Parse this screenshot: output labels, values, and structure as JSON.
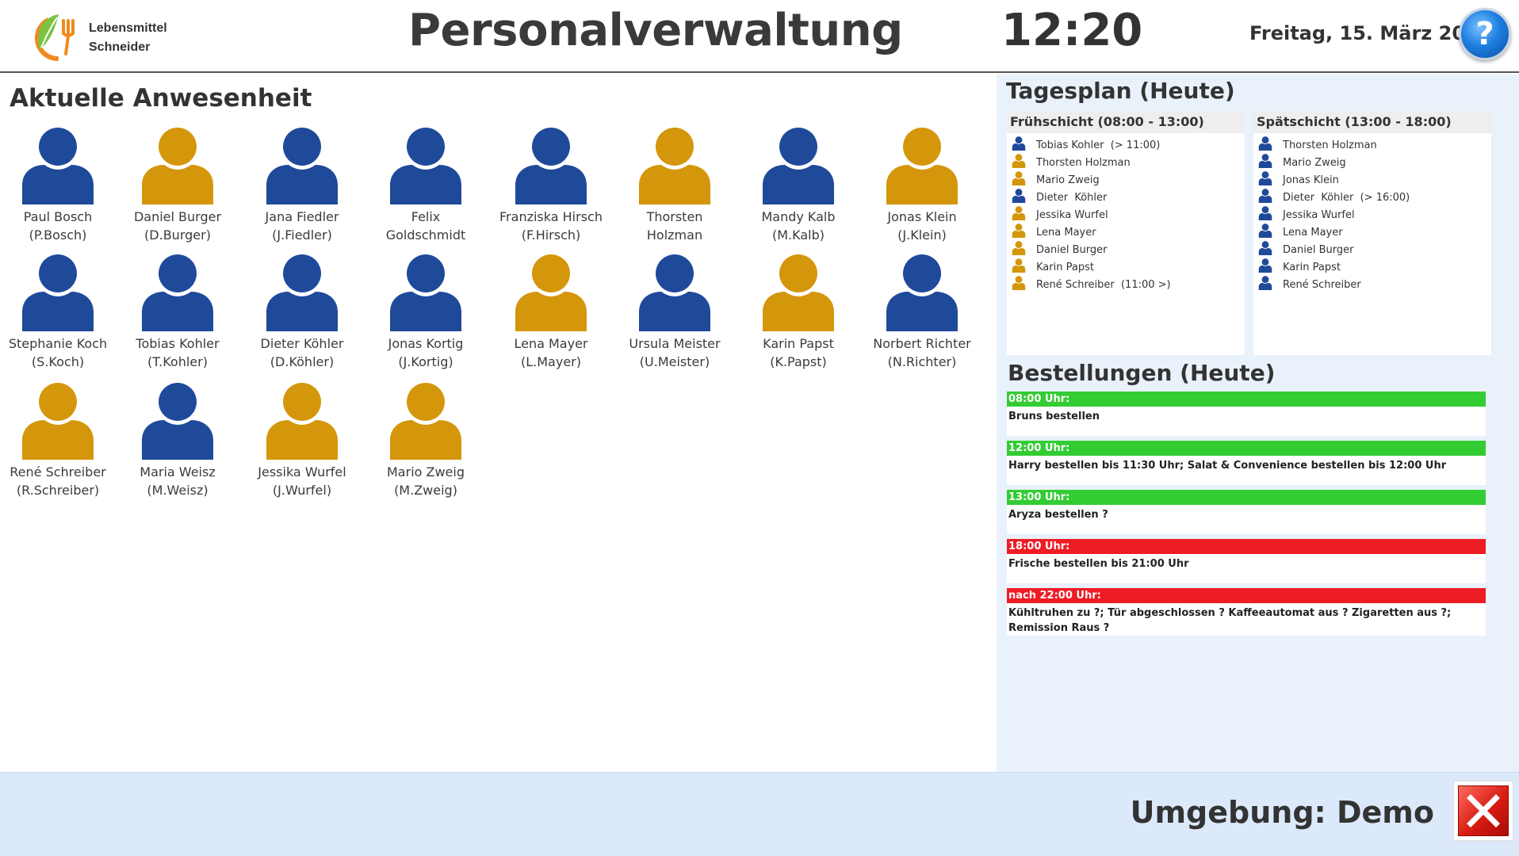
{
  "header": {
    "logo_line1": "Lebensmittel",
    "logo_line2": "Schneider",
    "title": "Personalverwaltung",
    "time": "12:20",
    "date": "Freitag, 15. März 2024",
    "help_label": "?"
  },
  "colors": {
    "present": "#1f4a9a",
    "absent": "#d4960a",
    "order_green": "#33cc33",
    "order_red": "#ee1c25"
  },
  "attendance": {
    "title": "Aktuelle Anwesenheit",
    "people": [
      {
        "name": "Paul Bosch",
        "short": "(P.Bosch)",
        "status": "blue"
      },
      {
        "name": "Daniel Burger",
        "short": "(D.Burger)",
        "status": "gold"
      },
      {
        "name": "Jana Fiedler",
        "short": "(J.Fiedler)",
        "status": "blue"
      },
      {
        "name": "Felix",
        "short": "Goldschmidt",
        "status": "blue"
      },
      {
        "name": "Franziska Hirsch",
        "short": "(F.Hirsch)",
        "status": "blue"
      },
      {
        "name": "Thorsten",
        "short": "Holzman",
        "status": "gold"
      },
      {
        "name": "Mandy Kalb",
        "short": "(M.Kalb)",
        "status": "blue"
      },
      {
        "name": "Jonas Klein",
        "short": "(J.Klein)",
        "status": "gold"
      },
      {
        "name": "Stephanie Koch",
        "short": "(S.Koch)",
        "status": "blue"
      },
      {
        "name": "Tobias Kohler",
        "short": "(T.Kohler)",
        "status": "blue"
      },
      {
        "name": "Dieter  Köhler",
        "short": "(D.Köhler)",
        "status": "blue"
      },
      {
        "name": "Jonas Kortig",
        "short": "(J.Kortig)",
        "status": "blue"
      },
      {
        "name": "Lena Mayer",
        "short": "(L.Mayer)",
        "status": "gold"
      },
      {
        "name": "Ursula Meister",
        "short": "(U.Meister)",
        "status": "blue"
      },
      {
        "name": "Karin Papst",
        "short": "(K.Papst)",
        "status": "gold"
      },
      {
        "name": "Norbert Richter",
        "short": "(N.Richter)",
        "status": "blue"
      },
      {
        "name": "René Schreiber",
        "short": "(R.Schreiber)",
        "status": "gold"
      },
      {
        "name": "Maria Weisz",
        "short": "(M.Weisz)",
        "status": "blue"
      },
      {
        "name": "Jessika Wurfel",
        "short": "(J.Wurfel)",
        "status": "gold"
      },
      {
        "name": "Mario Zweig",
        "short": "(M.Zweig)",
        "status": "gold"
      }
    ]
  },
  "plan": {
    "title": "Tagesplan (Heute)",
    "early": {
      "title": "Frühschicht (08:00 - 13:00)",
      "items": [
        {
          "label": "Tobias Kohler  (> 11:00)",
          "status": "blue"
        },
        {
          "label": "Thorsten Holzman",
          "status": "gold"
        },
        {
          "label": "Mario Zweig",
          "status": "gold"
        },
        {
          "label": "Dieter  Köhler",
          "status": "blue"
        },
        {
          "label": "Jessika Wurfel",
          "status": "gold"
        },
        {
          "label": "Lena Mayer",
          "status": "gold"
        },
        {
          "label": "Daniel Burger",
          "status": "gold"
        },
        {
          "label": "Karin Papst",
          "status": "gold"
        },
        {
          "label": "René Schreiber  (11:00 >)",
          "status": "gold"
        }
      ]
    },
    "late": {
      "title": "Spätschicht (13:00 - 18:00)",
      "items": [
        {
          "label": "Thorsten Holzman",
          "status": "blue"
        },
        {
          "label": "Mario Zweig",
          "status": "blue"
        },
        {
          "label": "Jonas Klein",
          "status": "blue"
        },
        {
          "label": "Dieter  Köhler  (> 16:00)",
          "status": "blue"
        },
        {
          "label": "Jessika Wurfel",
          "status": "blue"
        },
        {
          "label": "Lena Mayer",
          "status": "blue"
        },
        {
          "label": "Daniel Burger",
          "status": "blue"
        },
        {
          "label": "Karin Papst",
          "status": "blue"
        },
        {
          "label": "René Schreiber",
          "status": "blue"
        }
      ]
    }
  },
  "orders": {
    "title": "Bestellungen (Heute)",
    "items": [
      {
        "time": "08:00 Uhr:",
        "text": "Bruns bestellen",
        "color": "green"
      },
      {
        "time": "12:00 Uhr:",
        "text": "Harry bestellen bis 11:30 Uhr; Salat & Convenience bestellen bis 12:00 Uhr",
        "color": "green"
      },
      {
        "time": "13:00 Uhr:",
        "text": "Aryza bestellen ?",
        "color": "green"
      },
      {
        "time": "18:00 Uhr:",
        "text": "Frische bestellen bis 21:00 Uhr",
        "color": "red"
      },
      {
        "time": "nach 22:00 Uhr:",
        "text": "Kühltruhen zu ?; Tür abgeschlossen ? Kaffeeautomat aus ? Zigaretten aus ?; Remission Raus ?",
        "color": "red"
      }
    ]
  },
  "footer": {
    "environment": "Umgebung: Demo"
  }
}
